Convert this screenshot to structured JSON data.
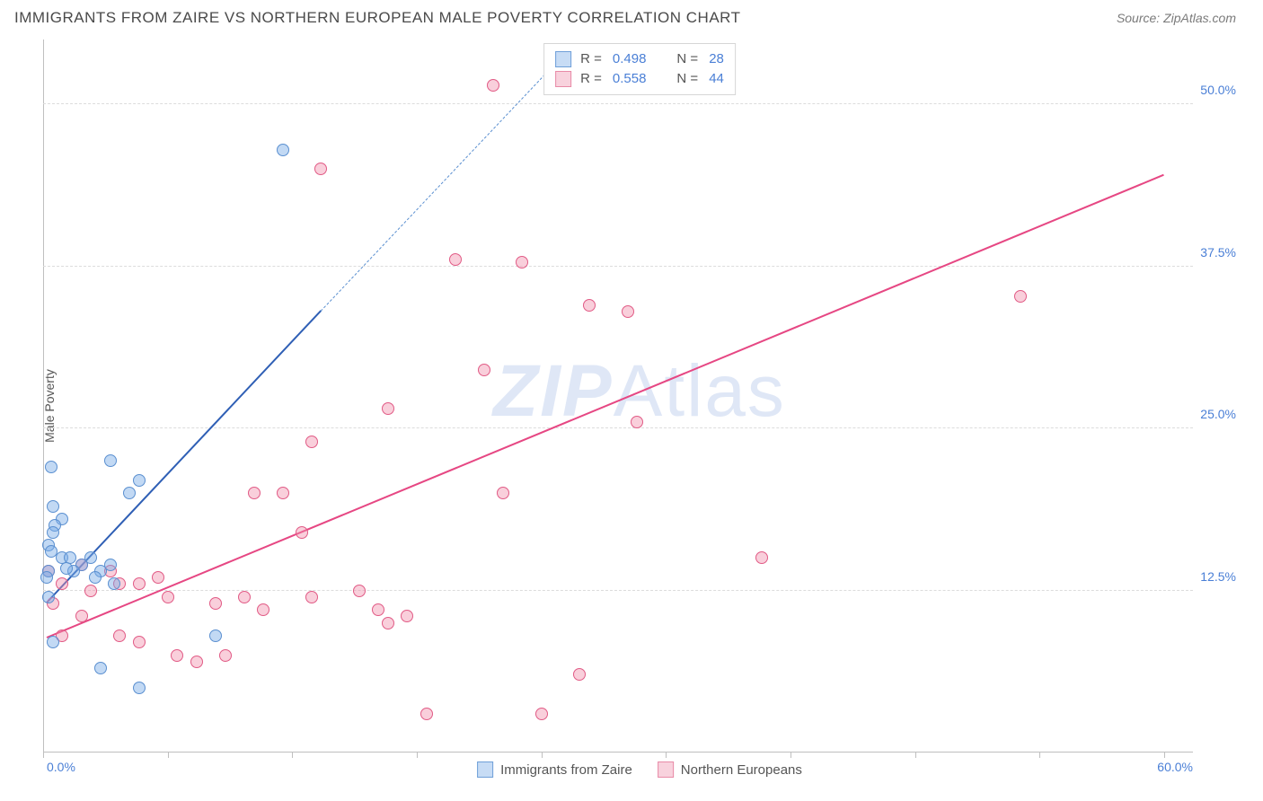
{
  "header": {
    "title": "IMMIGRANTS FROM ZAIRE VS NORTHERN EUROPEAN MALE POVERTY CORRELATION CHART",
    "source_prefix": "Source: ",
    "source": "ZipAtlas.com"
  },
  "watermark": {
    "a": "ZIP",
    "b": "Atlas"
  },
  "chart": {
    "type": "scatter",
    "xlim": [
      0,
      60
    ],
    "ylim": [
      0,
      55
    ],
    "ylabel": "Male Poverty",
    "yticks": [
      12.5,
      25.0,
      37.5,
      50.0
    ],
    "ytick_labels": [
      "12.5%",
      "25.0%",
      "37.5%",
      "50.0%"
    ],
    "xtick_positions": [
      0,
      6.5,
      13,
      19.5,
      26,
      32.5,
      39,
      45.5,
      52,
      58.5
    ],
    "origin_label": "0.0%",
    "xmax_label": "60.0%",
    "grid_color": "#dcdcdc",
    "axis_color": "#bfbfbf",
    "tick_color": "#4a7fd6",
    "background": "#ffffff",
    "marker_radius": 7,
    "series": {
      "zaire": {
        "label": "Immigrants from Zaire",
        "color_fill": "rgba(120,170,230,0.45)",
        "color_stroke": "#5a8fd0",
        "line_color": "#2f5fb5",
        "R": "0.498",
        "N": "28",
        "points": [
          [
            12.5,
            46.5
          ],
          [
            3.5,
            22.5
          ],
          [
            0.4,
            22.0
          ],
          [
            0.5,
            19.0
          ],
          [
            5.0,
            21.0
          ],
          [
            4.5,
            20.0
          ],
          [
            1.0,
            18.0
          ],
          [
            0.6,
            17.5
          ],
          [
            0.5,
            17.0
          ],
          [
            0.3,
            16.0
          ],
          [
            0.4,
            15.5
          ],
          [
            1.0,
            15.0
          ],
          [
            3.5,
            14.5
          ],
          [
            1.4,
            15.0
          ],
          [
            2.0,
            14.5
          ],
          [
            0.3,
            14.0
          ],
          [
            3.0,
            14.0
          ],
          [
            1.6,
            14.0
          ],
          [
            1.2,
            14.2
          ],
          [
            2.5,
            15.0
          ],
          [
            3.7,
            13.0
          ],
          [
            2.7,
            13.5
          ],
          [
            0.2,
            13.5
          ],
          [
            0.3,
            12.0
          ],
          [
            9.0,
            9.0
          ],
          [
            3.0,
            6.5
          ],
          [
            5.0,
            5.0
          ],
          [
            0.5,
            8.5
          ]
        ],
        "reg_solid": {
          "x1": 0.2,
          "y1": 11.5,
          "x2": 14.5,
          "y2": 34.0
        },
        "reg_dash": {
          "x1": 14.5,
          "y1": 34.0,
          "x2": 27.0,
          "y2": 53.5
        }
      },
      "neuro": {
        "label": "Northern Europeans",
        "color_fill": "rgba(240,140,170,0.42)",
        "color_stroke": "#e15a85",
        "line_color": "#e64783",
        "R": "0.558",
        "N": "44",
        "points": [
          [
            23.5,
            51.5
          ],
          [
            14.5,
            45.0
          ],
          [
            21.5,
            38.0
          ],
          [
            25.0,
            37.8
          ],
          [
            51.0,
            35.2
          ],
          [
            28.5,
            34.5
          ],
          [
            30.5,
            34.0
          ],
          [
            23.0,
            29.5
          ],
          [
            18.0,
            26.5
          ],
          [
            31.0,
            25.5
          ],
          [
            14.0,
            24.0
          ],
          [
            11.0,
            20.0
          ],
          [
            12.5,
            20.0
          ],
          [
            24.0,
            20.0
          ],
          [
            13.5,
            17.0
          ],
          [
            37.5,
            15.0
          ],
          [
            2.0,
            14.5
          ],
          [
            3.5,
            14.0
          ],
          [
            0.3,
            14.0
          ],
          [
            5.0,
            13.0
          ],
          [
            6.0,
            13.5
          ],
          [
            1.0,
            13.0
          ],
          [
            2.5,
            12.5
          ],
          [
            4.0,
            13.0
          ],
          [
            6.5,
            12.0
          ],
          [
            9.0,
            11.5
          ],
          [
            10.5,
            12.0
          ],
          [
            14.0,
            12.0
          ],
          [
            11.5,
            11.0
          ],
          [
            16.5,
            12.5
          ],
          [
            18.0,
            10.0
          ],
          [
            17.5,
            11.0
          ],
          [
            19.0,
            10.5
          ],
          [
            2.0,
            10.5
          ],
          [
            1.0,
            9.0
          ],
          [
            0.5,
            11.5
          ],
          [
            4.0,
            9.0
          ],
          [
            5.0,
            8.5
          ],
          [
            7.0,
            7.5
          ],
          [
            8.0,
            7.0
          ],
          [
            9.5,
            7.5
          ],
          [
            28.0,
            6.0
          ],
          [
            20.0,
            3.0
          ],
          [
            26.0,
            3.0
          ]
        ],
        "reg_solid": {
          "x1": 0.2,
          "y1": 8.8,
          "x2": 58.5,
          "y2": 44.5
        }
      }
    },
    "legend": {
      "rows": [
        {
          "sw_fill": "#c7dcf5",
          "sw_stroke": "#6f9fd8",
          "r_label": "R =",
          "r_val": "0.498",
          "n_label": "N =",
          "n_val": "28"
        },
        {
          "sw_fill": "#f8d2dd",
          "sw_stroke": "#e88aa7",
          "r_label": "R =",
          "r_val": "0.558",
          "n_label": "N =",
          "n_val": "44"
        }
      ]
    },
    "bottom_legend": [
      {
        "sw_fill": "#c7dcf5",
        "sw_stroke": "#6f9fd8",
        "label": "Immigrants from Zaire"
      },
      {
        "sw_fill": "#f8d2dd",
        "sw_stroke": "#e88aa7",
        "label": "Northern Europeans"
      }
    ]
  }
}
